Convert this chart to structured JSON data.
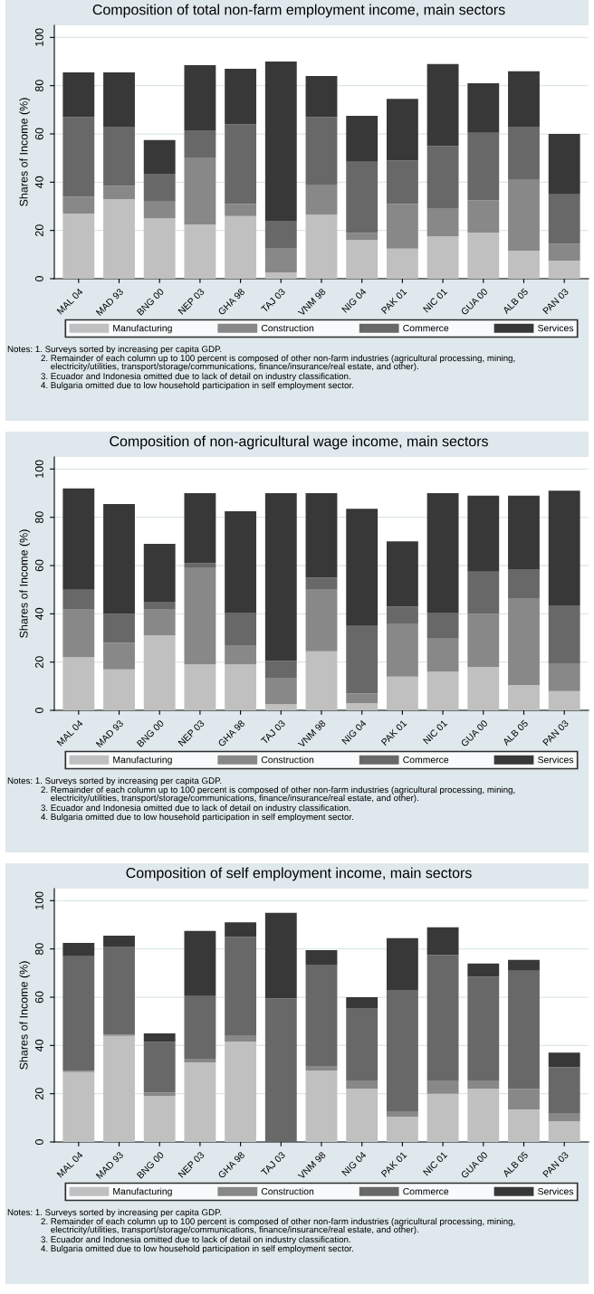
{
  "chart_data": [
    {
      "type": "bar",
      "stacked": true,
      "title": "Composition of total non-farm employment income, main sectors",
      "ylabel": "Shares of Income (%)",
      "categories": [
        "MAL 04",
        "MAD 93",
        "BNG 00",
        "NEP 03",
        "GHA 98",
        "TAJ 03",
        "VNM 98",
        "NIG 04",
        "PAK 01",
        "NIC 01",
        "GUA 00",
        "ALB 05",
        "PAN 03"
      ],
      "series": [
        {
          "name": "Manufacturing",
          "color": "#c0c0c0",
          "values": [
            27,
            33,
            25,
            22.5,
            26,
            2.5,
            26.5,
            16,
            12.5,
            17.5,
            19,
            11.5,
            7.5
          ]
        },
        {
          "name": "Construction",
          "color": "#888888",
          "values": [
            7,
            5.5,
            7,
            27.5,
            5,
            10,
            12.5,
            3,
            18.5,
            11.5,
            13.5,
            29.5,
            7
          ]
        },
        {
          "name": "Commerce",
          "color": "#686868",
          "values": [
            33,
            24.5,
            11.5,
            11.5,
            33,
            11.5,
            28,
            29.5,
            18,
            26,
            28,
            22,
            20.5
          ]
        },
        {
          "name": "Services",
          "color": "#383838",
          "values": [
            18.5,
            22.5,
            14,
            27,
            23,
            66,
            17,
            19,
            25.5,
            34,
            20.5,
            23,
            25
          ]
        }
      ],
      "ylim": [
        0,
        105
      ],
      "yticks": [
        0,
        20,
        40,
        60,
        80,
        100
      ],
      "grid": "y",
      "legend": "bottom",
      "annotations": [
        "Notes: 1. Surveys sorted by increasing per capita GDP.",
        "2. Remainder of each column up to 100 percent is composed of other non-farm industries (agricultural processing, mining,\n    electricity/utilities, transport/storage/communications, finance/insurance/real estate, and other).",
        "3. Ecuador and Indonesia omitted due to lack of detail on industry classification.",
        "4. Bulgaria omitted due to low household participation in self employment sector."
      ]
    },
    {
      "type": "bar",
      "stacked": true,
      "title": "Composition of non-agricultural wage income, main sectors",
      "ylabel": "Shares of Income (%)",
      "categories": [
        "MAL 04",
        "MAD 93",
        "BNG 00",
        "NEP 03",
        "GHA 98",
        "TAJ 03",
        "VNM 98",
        "NIG 04",
        "PAK 01",
        "NIC 01",
        "GUA 00",
        "ALB 05",
        "PAN 03"
      ],
      "series": [
        {
          "name": "Manufacturing",
          "color": "#c0c0c0",
          "values": [
            22,
            17,
            31,
            19,
            19,
            2.5,
            24.5,
            3,
            14,
            16,
            18,
            10.5,
            8
          ]
        },
        {
          "name": "Construction",
          "color": "#888888",
          "values": [
            20,
            11,
            11,
            40,
            8,
            11,
            25.5,
            4,
            22,
            14,
            22,
            36,
            11.5
          ]
        },
        {
          "name": "Commerce",
          "color": "#686868",
          "values": [
            8,
            12,
            3,
            2,
            13.5,
            7,
            5,
            28,
            7,
            10.5,
            17.5,
            12,
            24
          ]
        },
        {
          "name": "Services",
          "color": "#383838",
          "values": [
            42,
            45.5,
            24,
            29,
            42,
            69.5,
            35,
            48.5,
            27,
            49.5,
            31.5,
            30.5,
            47.5
          ]
        }
      ],
      "ylim": [
        0,
        105
      ],
      "yticks": [
        0,
        20,
        40,
        60,
        80,
        100
      ],
      "grid": "y",
      "legend": "bottom",
      "annotations": [
        "Notes: 1. Surveys sorted by increasing per capita GDP.",
        "2. Remainder of each column up to 100 percent is composed of other non-farm industries (agricultural processing, mining,\n    electricity/utilities, transport/storage/communications, finance/insurance/real estate, and other).",
        "3. Ecuador and Indonesia omitted due to lack of detail on industry classification.",
        "4. Bulgaria omitted due to low household participation in self employment sector."
      ]
    },
    {
      "type": "bar",
      "stacked": true,
      "title": "Composition of self employment income, main sectors",
      "ylabel": "Shares of Income (%)",
      "categories": [
        "MAL 04",
        "MAD 93",
        "BNG 00",
        "NEP 03",
        "GHA 98",
        "TAJ 03",
        "VNM 98",
        "NIG 04",
        "PAK 01",
        "NIC 01",
        "GUA 00",
        "ALB 05",
        "PAN 03"
      ],
      "series": [
        {
          "name": "Manufacturing",
          "color": "#c0c0c0",
          "values": [
            29,
            44,
            19,
            33,
            41.5,
            0,
            29.5,
            22,
            10.5,
            20,
            22,
            13.5,
            8.5
          ]
        },
        {
          "name": "Construction",
          "color": "#888888",
          "values": [
            0.5,
            0.5,
            1.5,
            1.5,
            2.5,
            0,
            2,
            3.5,
            2,
            5.5,
            3.5,
            8.5,
            3.5
          ]
        },
        {
          "name": "Commerce",
          "color": "#686868",
          "values": [
            47.5,
            36.5,
            21,
            26,
            41,
            59.5,
            42,
            30,
            50.5,
            52,
            43,
            49,
            19
          ]
        },
        {
          "name": "Services",
          "color": "#383838",
          "values": [
            5.5,
            4.5,
            3.5,
            27,
            6,
            35.5,
            6,
            4.5,
            21.5,
            11.5,
            5.5,
            4.5,
            6
          ]
        }
      ],
      "ylim": [
        0,
        105
      ],
      "yticks": [
        0,
        20,
        40,
        60,
        80,
        100
      ],
      "grid": "y",
      "legend": "bottom",
      "annotations": [
        "Notes: 1. Surveys sorted by increasing per capita GDP.",
        "2. Remainder of each column up to 100 percent is composed of other non-farm industries (agricultural processing, mining,\n    electricity/utilities, transport/storage/communications, finance/insurance/real estate, and other).",
        "3. Ecuador and Indonesia omitted due to lack of detail on industry classification.",
        "4. Bulgaria omitted due to low household participation in self employment sector."
      ]
    }
  ]
}
